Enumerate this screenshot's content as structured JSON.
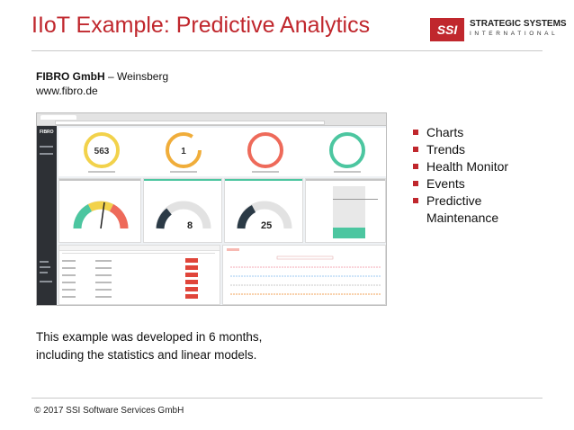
{
  "slide": {
    "title": "IIoT Example: Predictive Analytics"
  },
  "logo": {
    "mark": "SSI",
    "name": "STRATEGIC SYSTEMS",
    "tagline": "INTERNATIONAL",
    "color": "#c0272d"
  },
  "company": {
    "name": "FIBRO GmbH",
    "location": " – Weinsberg",
    "website": "www.fibro.de"
  },
  "dashboard": {
    "brand": "FIBRO",
    "kpis": [
      {
        "value": "563",
        "color": "#f2d24b"
      },
      {
        "value": "1",
        "color": "#f0ad3a"
      },
      {
        "value": "",
        "color": "#ee6a5a"
      },
      {
        "value": "",
        "color": "#4cc6a0"
      }
    ],
    "gauges": [
      {
        "value": "8"
      },
      {
        "value": "25"
      }
    ],
    "events_label": "Overdue",
    "accent_colors": {
      "green": "#4cc6a0",
      "red": "#e0453a",
      "gray": "#b5b5b5"
    }
  },
  "bullets": [
    "Charts",
    "Trends",
    "Health Monitor",
    "Events",
    "Predictive Maintenance"
  ],
  "note": {
    "line1": "This example was developed in 6 months,",
    "line2": "including the statistics and linear models."
  },
  "footer": {
    "text": "© 2017 SSI Software Services GmbH"
  }
}
